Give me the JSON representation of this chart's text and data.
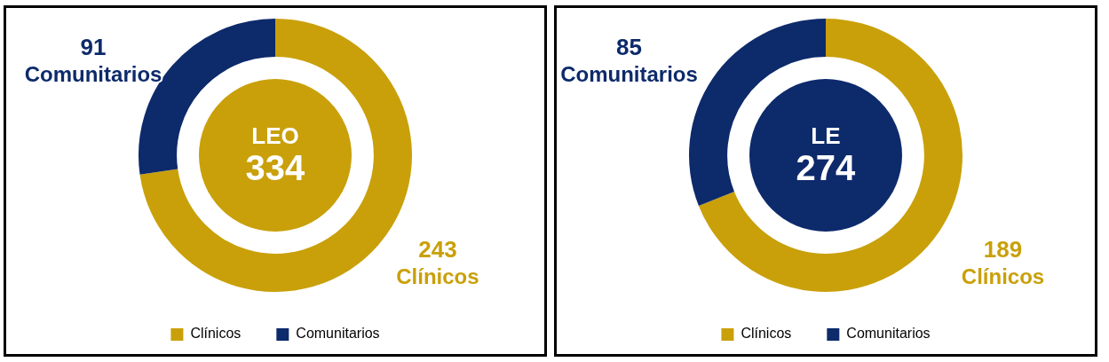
{
  "chart_data": [
    {
      "type": "donut",
      "categories": [
        "Clínicos",
        "Comunitarios"
      ],
      "values": [
        243,
        91
      ],
      "colors": [
        "#c9a00a",
        "#0d2a6b"
      ],
      "data_labels": true,
      "legend": "bottom",
      "annotations": [
        "LEO",
        "334"
      ]
    },
    {
      "type": "donut",
      "categories": [
        "Clínicos",
        "Comunitarios"
      ],
      "values": [
        189,
        85
      ],
      "colors": [
        "#c9a00a",
        "#0d2a6b"
      ],
      "data_labels": true,
      "legend": "bottom",
      "annotations": [
        "LE",
        "274"
      ]
    }
  ]
}
